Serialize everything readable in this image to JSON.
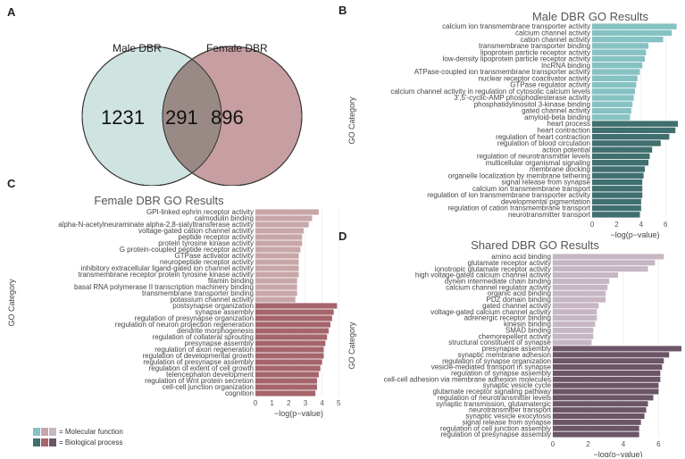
{
  "panels": {
    "a": "A",
    "b": "B",
    "c": "C",
    "d": "D"
  },
  "venn": {
    "left_label": "Male DBR",
    "right_label": "Female DBR",
    "left_only": "1231",
    "overlap": "291",
    "right_only": "896",
    "colors": {
      "left": "#cfe4e0",
      "right": "#c79ea1",
      "overlap": "#9a8a86"
    }
  },
  "legend": {
    "molecular_label": "= Molecular function",
    "biological_label": "= Biological process",
    "molecular_colors": [
      "#86c2c3",
      "#c8a6a8",
      "#c7b6c3"
    ],
    "biological_colors": [
      "#3f6f6e",
      "#a5656b",
      "#6c5566"
    ]
  },
  "chart_data": [
    {
      "type": "bar",
      "orientation": "horizontal",
      "title": "Male DBR GO Results",
      "xlabel": "−log(p−value)",
      "ylabel": "GO Category",
      "xlim": [
        0,
        7
      ],
      "xticks": [
        "0",
        "2",
        "4",
        "6"
      ],
      "categories": [
        "calcium ion transmembrane transporter activity",
        "calcium channel activity",
        "cation channel activity",
        "transmembrane transporter binding",
        "lipoprotein particle receptor activity",
        "low-density lipoprotein particle receptor activity",
        "lncRNA binding",
        "ATPase-coupled ion transmembrane transporter activity",
        "nuclear receptor coactivator activity",
        "GTPase regulator activity",
        "calcium channel activity in regulation of cytosolic calcium levels",
        "3',5'-cyclic-AMP phosphodiesterase activity",
        "phosphatidylinositol 3-kinase binding",
        "gated channel activity",
        "amyloid-beta binding",
        "heart process",
        "heart contraction",
        "regulation of heart contraction",
        "regulation of blood circulation",
        "action potential",
        "regulation of neurotransmitter levels",
        "multicellular organismal signaling",
        "membrane docking",
        "organelle localization by membrane tethering",
        "signal release from synapse",
        "calcium ion transmembrane transport",
        "regulation of ion transmembrane transporter activity",
        "developmental pigmentation",
        "regulation of cation transmembrane transport",
        "neurotransmitter transport"
      ],
      "values": [
        6.9,
        6.5,
        5.8,
        4.6,
        4.4,
        4.3,
        4.1,
        3.9,
        3.7,
        3.6,
        3.5,
        3.4,
        3.3,
        3.2,
        3.1,
        7.0,
        6.8,
        6.3,
        5.6,
        4.9,
        4.7,
        4.6,
        4.3,
        4.2,
        4.1,
        4.1,
        4.1,
        4.0,
        4.0,
        3.9
      ],
      "groups": [
        "molecular",
        "molecular",
        "molecular",
        "molecular",
        "molecular",
        "molecular",
        "molecular",
        "molecular",
        "molecular",
        "molecular",
        "molecular",
        "molecular",
        "molecular",
        "molecular",
        "molecular",
        "biological",
        "biological",
        "biological",
        "biological",
        "biological",
        "biological",
        "biological",
        "biological",
        "biological",
        "biological",
        "biological",
        "biological",
        "biological",
        "biological",
        "biological"
      ],
      "colors": {
        "molecular": "#86c2c3",
        "biological": "#3f6f6e"
      }
    },
    {
      "type": "bar",
      "orientation": "horizontal",
      "title": "Female DBR GO Results",
      "xlabel": "−log(p−value)",
      "ylabel": "GO Category",
      "xlim": [
        0,
        5.2
      ],
      "xticks": [
        "0",
        "1",
        "2",
        "3",
        "4",
        "5"
      ],
      "categories": [
        "GPI-linked ephrin receptor activity",
        "calmodulin binding",
        "alpha-N-acetylneuraminate alpha-2,8-sialyltransferase activity",
        "voltage-gated cation channel activity",
        "peptide receptor activity",
        "protein tyrosine kinase activity",
        "G protein-coupled peptide receptor activity",
        "GTPase activator activity",
        "neuropeptide receptor activity",
        "inhibitory extracellular ligand-gated ion channel activity",
        "transmembrane receptor protein tyrosine kinase activity",
        "filamin binding",
        "basal RNA polymerase II transcription machinery binding",
        "transmembrane transporter binding",
        "potassium channel activity",
        "postsynapse organization",
        "synapse assembly",
        "regulation of presynapse organization",
        "regulation of neuron projection regeneration",
        "dendrite morphogenesis",
        "regulation of collateral sprouting",
        "presynapse assembly",
        "regulation of axon regeneration",
        "regulation of developmental growth",
        "regulation of presynapse assembly",
        "regulation of extent of cell growth",
        "telencephalon development",
        "regulation of Wnt protein secretion",
        "cell-cell junction organization",
        "cognition"
      ],
      "values": [
        3.8,
        3.4,
        3.2,
        2.9,
        2.8,
        2.8,
        2.7,
        2.6,
        2.6,
        2.6,
        2.6,
        2.5,
        2.5,
        2.5,
        2.4,
        4.9,
        4.7,
        4.6,
        4.5,
        4.4,
        4.3,
        4.2,
        4.1,
        4.1,
        4.0,
        3.9,
        3.8,
        3.7,
        3.7,
        3.6
      ],
      "groups": [
        "molecular",
        "molecular",
        "molecular",
        "molecular",
        "molecular",
        "molecular",
        "molecular",
        "molecular",
        "molecular",
        "molecular",
        "molecular",
        "molecular",
        "molecular",
        "molecular",
        "molecular",
        "biological",
        "biological",
        "biological",
        "biological",
        "biological",
        "biological",
        "biological",
        "biological",
        "biological",
        "biological",
        "biological",
        "biological",
        "biological",
        "biological",
        "biological"
      ],
      "colors": {
        "molecular": "#c8a6a8",
        "biological": "#a5656b"
      }
    },
    {
      "type": "bar",
      "orientation": "horizontal",
      "title": "Shared DBR GO Results",
      "xlabel": "−log(p−value)",
      "ylabel": "GO Category",
      "xlim": [
        0,
        7.4
      ],
      "xticks": [
        "0",
        "2",
        "4",
        "6"
      ],
      "categories": [
        "amino acid binding",
        "glutamate receptor activity",
        "ionotropic glutamate receptor activity",
        "high voltage-gated calcium channel activity",
        "dynein intermediate chain binding",
        "calcium channel regulator activity",
        "organic acid binding",
        "PDZ domain binding",
        "gated channel activity",
        "voltage-gated calcium channel activity",
        "adrenergic receptor binding",
        "kinesin binding",
        "SMAD binding",
        "chemorepellent activity",
        "structural constituent of synapse",
        "presynapse assembly",
        "synaptic membrane adhesion",
        "regulation of synapse organization",
        "vesicle-mediated transport in synapse",
        "regulation of synapse assembly",
        "cell-cell adhesion via membrane adhesion molecules",
        "synaptic vesicle cycle",
        "glutamate receptor signaling pathway",
        "regulation of neurotransmitter levels",
        "synaptic transmission, glutamatergic",
        "neurotransmitter transport",
        "synaptic vesicle exocytosis",
        "signal release from synapse",
        "regulation of cell junction assembly",
        "regulation of presynapse assembly"
      ],
      "values": [
        6.3,
        5.8,
        5.4,
        3.7,
        3.2,
        3.1,
        3.0,
        3.0,
        2.6,
        2.5,
        2.5,
        2.4,
        2.3,
        2.3,
        2.2,
        7.3,
        6.6,
        6.3,
        6.2,
        6.1,
        6.1,
        6.0,
        6.0,
        5.7,
        5.4,
        5.3,
        5.2,
        5.0,
        4.9,
        4.9
      ],
      "groups": [
        "molecular",
        "molecular",
        "molecular",
        "molecular",
        "molecular",
        "molecular",
        "molecular",
        "molecular",
        "molecular",
        "molecular",
        "molecular",
        "molecular",
        "molecular",
        "molecular",
        "molecular",
        "biological",
        "biological",
        "biological",
        "biological",
        "biological",
        "biological",
        "biological",
        "biological",
        "biological",
        "biological",
        "biological",
        "biological",
        "biological",
        "biological",
        "biological"
      ],
      "colors": {
        "molecular": "#c7b6c3",
        "biological": "#6c5566"
      }
    }
  ]
}
